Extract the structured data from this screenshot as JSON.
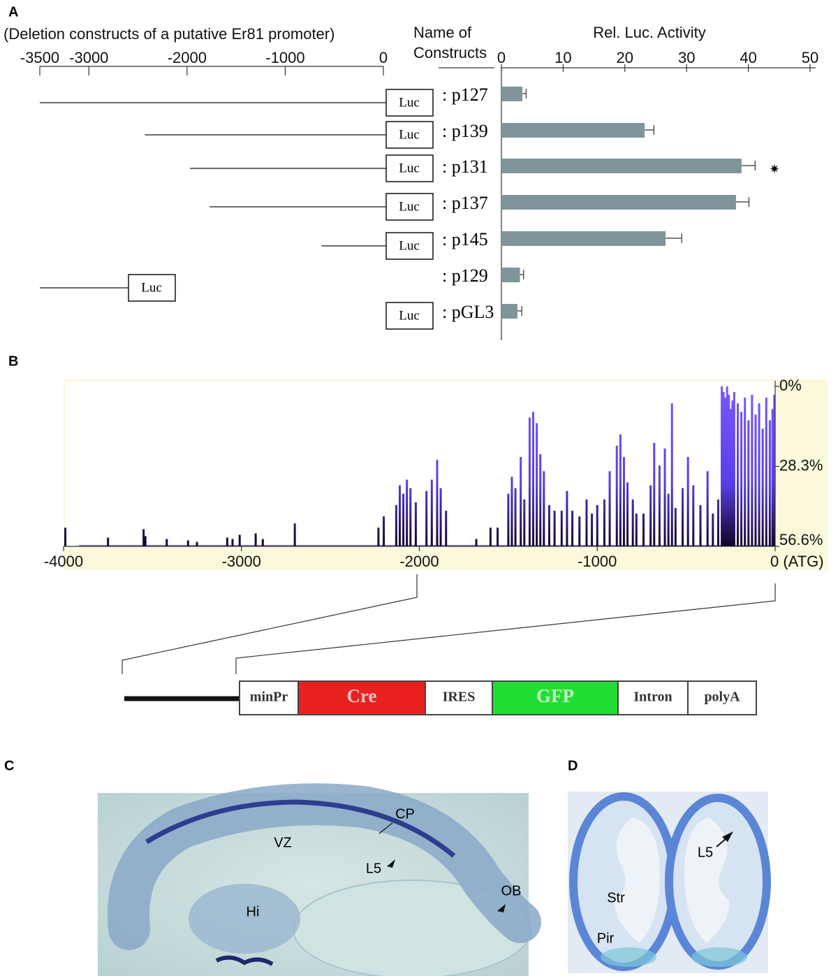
{
  "panel_labels": [
    "A",
    "B",
    "C",
    "D"
  ],
  "deletion_map": {
    "title": "(Deletion constructs of a putative Er81 promoter)",
    "xlim": [
      -3500,
      0
    ],
    "xticks": [
      -3500,
      -3000,
      -2000,
      -1000,
      0
    ],
    "box_label": "Luc",
    "constructs": [
      {
        "start": -3500,
        "end": 0
      },
      {
        "start": -2430,
        "end": 0
      },
      {
        "start": -1970,
        "end": 0
      },
      {
        "start": -1770,
        "end": 0
      },
      {
        "start": -630,
        "end": 0
      },
      {
        "start": -3500,
        "end": -2625
      },
      {
        "start": null,
        "end": 0
      }
    ]
  },
  "constructs_header": [
    "Name of",
    "Constructs"
  ],
  "chart_data": [
    {
      "type": "bar",
      "orientation": "horizontal",
      "title": "Rel. Luc. Activity",
      "categories": [
        ": p127",
        ": p139",
        ": p131",
        ": p137",
        ": p145",
        ": p129",
        ": pGL3"
      ],
      "values": [
        3.4,
        23.2,
        38.9,
        38.0,
        26.6,
        3.0,
        2.6
      ],
      "errors": [
        0.6,
        1.5,
        2.2,
        2.1,
        2.6,
        0.6,
        0.7
      ],
      "color": "#7f959a",
      "xlim": [
        0,
        50
      ],
      "xticks": [
        0,
        10,
        20,
        30,
        40,
        50
      ],
      "annotation": "✷"
    },
    {
      "type": "bar",
      "orientation": "vertical",
      "color": "#6b4cff",
      "x": [
        -3990,
        -3750,
        -3550,
        -3540,
        -3420,
        -3300,
        -3250,
        -3080,
        -3050,
        -3010,
        -2920,
        -2880,
        -2700,
        -2230,
        -2200,
        -2130,
        -2110,
        -2090,
        -2070,
        -2050,
        -2020,
        -1960,
        -1930,
        -1900,
        -1880,
        -1850,
        -1680,
        -1600,
        -1560,
        -1500,
        -1480,
        -1460,
        -1430,
        -1410,
        -1380,
        -1360,
        -1340,
        -1320,
        -1300,
        -1270,
        -1240,
        -1200,
        -1170,
        -1140,
        -1100,
        -1060,
        -1030,
        -1000,
        -960,
        -930,
        -890,
        -870,
        -850,
        -830,
        -800,
        -780,
        -740,
        -700,
        -680,
        -650,
        -620,
        -600,
        -580,
        -560,
        -520,
        -490,
        -460,
        -420,
        -380,
        -350,
        -320,
        -300,
        -290,
        -280,
        -270,
        -260,
        -250,
        -240,
        -230,
        -210,
        -190,
        -170,
        -150,
        -130,
        -110,
        -90,
        -70,
        -50,
        -30,
        -15,
        -5
      ],
      "values": [
        50,
        53.5,
        50.5,
        53,
        54,
        54.5,
        55,
        53.5,
        54,
        52.5,
        52,
        54,
        48.5,
        50,
        46,
        42,
        35,
        38,
        33,
        36,
        41,
        37,
        33,
        26,
        36,
        44,
        54,
        50,
        50,
        38,
        32,
        36,
        25,
        40,
        11,
        9,
        13,
        24,
        30,
        42,
        44,
        44,
        37,
        44,
        46,
        40,
        45,
        42,
        40,
        30,
        21,
        17,
        25,
        34,
        40,
        45,
        45,
        35,
        20,
        28,
        22,
        38,
        6,
        43,
        36,
        25,
        35,
        42,
        30,
        45,
        40,
        0,
        2,
        4,
        0,
        3,
        8,
        5,
        2,
        6,
        9,
        4,
        12,
        3,
        10,
        6,
        15,
        4,
        12,
        8,
        3
      ],
      "xlim": [
        -4000,
        0
      ],
      "xticks": [
        -4000,
        -3000,
        -2000,
        -1000,
        {
          "value": 0,
          "label": "0 (ATG)"
        }
      ],
      "ylim": [
        56.6,
        0
      ],
      "yticks": [
        {
          "value": 0,
          "label": "0%"
        },
        {
          "value": 28.3,
          "label": "28.3%"
        },
        {
          "value": 56.6,
          "label": "56.6%"
        }
      ]
    }
  ],
  "construct_diagram": {
    "elements": [
      "minPr",
      "Cre",
      "IRES",
      "GFP",
      "Intron",
      "polyA"
    ]
  },
  "image_c": {
    "labels": [
      "CP",
      "VZ",
      "L5",
      "OB",
      "Hi"
    ]
  },
  "image_d": {
    "labels": [
      "L5",
      "Str",
      "Pir"
    ]
  }
}
